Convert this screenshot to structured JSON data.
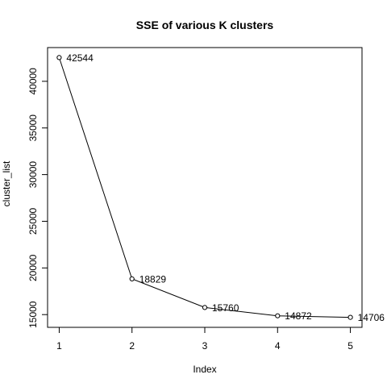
{
  "chart_data": {
    "type": "line",
    "title": "SSE of various K clusters",
    "xlabel": "Index",
    "ylabel": "cluster_list",
    "x": [
      1,
      2,
      3,
      4,
      5
    ],
    "values": [
      42544,
      18829,
      15760,
      14872,
      14706
    ],
    "data_labels": [
      "42544",
      "18829",
      "15760",
      "14872",
      "14706"
    ],
    "x_ticks": [
      1,
      2,
      3,
      4,
      5
    ],
    "y_ticks": [
      15000,
      20000,
      25000,
      30000,
      35000,
      40000
    ],
    "xlim": [
      0.84,
      5.16
    ],
    "ylim": [
      13635,
      43615
    ],
    "grid": false,
    "legend": "none",
    "marker": "open-circle",
    "line_color": "#000000"
  }
}
